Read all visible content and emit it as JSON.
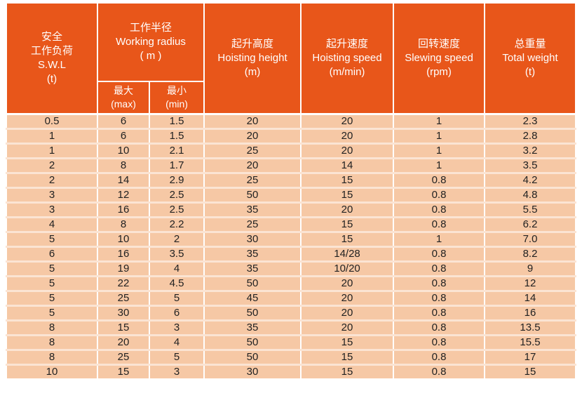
{
  "header": {
    "swl": [
      "安全",
      "工作负荷",
      "S.W.L",
      "(t)"
    ],
    "radius": [
      "工作半径",
      "Working radius",
      "( m )"
    ],
    "max": [
      "最大",
      "(max)"
    ],
    "min": [
      "最小",
      "(min)"
    ],
    "height": [
      "起升高度",
      "Hoisting height",
      "(m)"
    ],
    "hspeed": [
      "起升速度",
      "Hoisting speed",
      "(m/min)"
    ],
    "slew": [
      "回转速度",
      "Slewing speed",
      "(rpm)"
    ],
    "weight": [
      "总重量",
      "Total weight",
      "(t)"
    ]
  },
  "colors": {
    "header": "#e8561a",
    "body": "#f6c8a5"
  },
  "rows": [
    [
      "0.5",
      "6",
      "1.5",
      "20",
      "20",
      "1",
      "2.3"
    ],
    [
      "1",
      "6",
      "1.5",
      "20",
      "20",
      "1",
      "2.8"
    ],
    [
      "1",
      "10",
      "2.1",
      "25",
      "20",
      "1",
      "3.2"
    ],
    [
      "2",
      "8",
      "1.7",
      "20",
      "14",
      "1",
      "3.5"
    ],
    [
      "2",
      "14",
      "2.9",
      "25",
      "15",
      "0.8",
      "4.2"
    ],
    [
      "3",
      "12",
      "2.5",
      "50",
      "15",
      "0.8",
      "4.8"
    ],
    [
      "3",
      "16",
      "2.5",
      "35",
      "20",
      "0.8",
      "5.5"
    ],
    [
      "4",
      "8",
      "2.2",
      "25",
      "15",
      "0.8",
      "6.2"
    ],
    [
      "5",
      "10",
      "2",
      "30",
      "15",
      "1",
      "7.0"
    ],
    [
      "6",
      "16",
      "3.5",
      "35",
      "14/28",
      "0.8",
      "8.2"
    ],
    [
      "5",
      "19",
      "4",
      "35",
      "10/20",
      "0.8",
      "9"
    ],
    [
      "5",
      "22",
      "4.5",
      "50",
      "20",
      "0.8",
      "12"
    ],
    [
      "5",
      "25",
      "5",
      "45",
      "20",
      "0.8",
      "14"
    ],
    [
      "5",
      "30",
      "6",
      "50",
      "20",
      "0.8",
      "16"
    ],
    [
      "8",
      "15",
      "3",
      "35",
      "20",
      "0.8",
      "13.5"
    ],
    [
      "8",
      "20",
      "4",
      "50",
      "15",
      "0.8",
      "15.5"
    ],
    [
      "8",
      "25",
      "5",
      "50",
      "15",
      "0.8",
      "17"
    ],
    [
      "10",
      "15",
      "3",
      "30",
      "15",
      "0.8",
      "15"
    ]
  ]
}
